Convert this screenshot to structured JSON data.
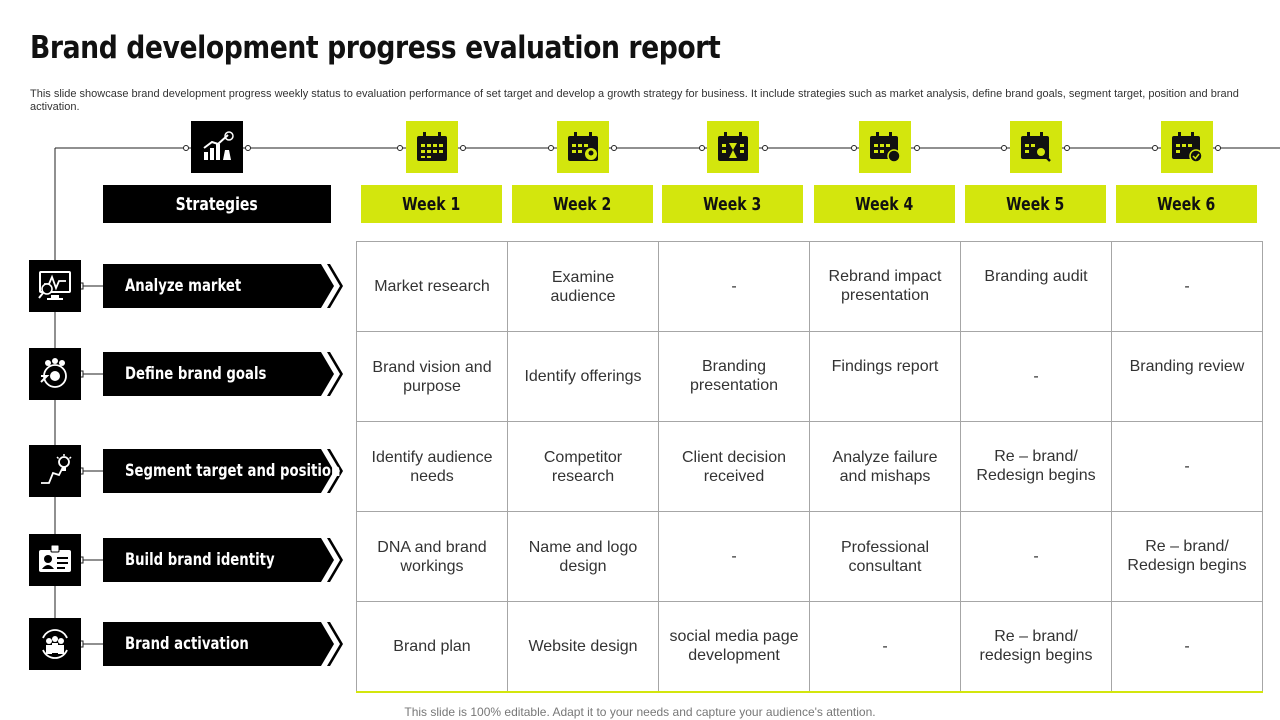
{
  "title": "Brand development progress evaluation report",
  "subtitle": "This slide showcase brand development progress weekly status to evaluation performance of set target and develop a growth strategy for business. It include strategies such as market analysis, define brand goals, segment target, position and brand activation.",
  "header": {
    "strategies_label": "Strategies",
    "weeks": [
      "Week 1",
      "Week 2",
      "Week 3",
      "Week 4",
      "Week 5",
      "Week 6"
    ]
  },
  "rows": [
    {
      "strategy": "Analyze market",
      "icon": "monitor-chart-icon",
      "cells": [
        "Market research",
        "Examine audience",
        "-",
        "Rebrand impact presentation",
        "Branding audit",
        "-"
      ]
    },
    {
      "strategy": "Define brand goals",
      "icon": "team-target-icon",
      "cells": [
        "Brand vision and purpose",
        "Identify offerings",
        "Branding presentation",
        "Findings report",
        "-",
        "Branding review"
      ]
    },
    {
      "strategy": "Segment target and position",
      "icon": "idea-growth-icon",
      "cells": [
        "Identify audience needs",
        "Competitor research",
        "Client decision received",
        "Analyze failure and mishaps",
        "Re – brand/ Redesign begins",
        "-"
      ]
    },
    {
      "strategy": "Build brand identity",
      "icon": "id-card-icon",
      "cells": [
        "DNA and brand workings",
        "Name and logo design",
        "-",
        "Professional consultant",
        "-",
        "Re – brand/ Redesign begins"
      ]
    },
    {
      "strategy": "Brand activation",
      "icon": "people-cycle-icon",
      "cells": [
        "Brand plan",
        "Website design",
        "social media page development",
        "-",
        "Re – brand/ redesign begins",
        "-"
      ]
    }
  ],
  "footer": "This slide is 100% editable. Adapt it to your needs and capture your audience's attention.",
  "colors": {
    "accent": "#d3e60d",
    "dark": "#000000",
    "grid": "#a6a6a6"
  }
}
